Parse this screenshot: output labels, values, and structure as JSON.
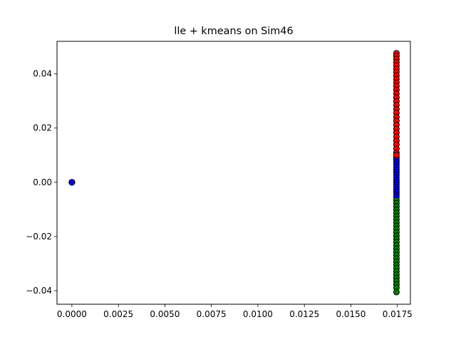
{
  "chart_data": {
    "type": "scatter",
    "title": "lle + kmeans on Sim46",
    "xlabel": "",
    "ylabel": "",
    "xlim": [
      -0.0008,
      0.0182
    ],
    "ylim": [
      -0.045,
      0.052
    ],
    "grid": false,
    "legend": "none",
    "x_ticks": [
      0.0,
      0.0025,
      0.005,
      0.0075,
      0.01,
      0.0125,
      0.015,
      0.0175
    ],
    "x_tick_labels": [
      "0.0000",
      "0.0025",
      "0.0050",
      "0.0075",
      "0.0100",
      "0.0125",
      "0.0150",
      "0.0175"
    ],
    "y_ticks": [
      -0.04,
      -0.02,
      0.0,
      0.02,
      0.04
    ],
    "y_tick_labels": [
      "−0.04",
      "−0.02",
      "0.00",
      "0.02",
      "0.04"
    ],
    "marker_edge_color": "#000000",
    "series": [
      {
        "color": "#0000ff",
        "points": [
          [
            0.0,
            0.0
          ],
          [
            0.0,
            0.0
          ],
          [
            0.0,
            0.0
          ],
          [
            0.0,
            0.0
          ],
          [
            0.0,
            0.0
          ],
          [
            0.01745,
            0.0092
          ],
          [
            0.01745,
            0.0083
          ],
          [
            0.01745,
            0.0074
          ],
          [
            0.01745,
            0.0065
          ],
          [
            0.01745,
            0.0055
          ],
          [
            0.01745,
            0.0046
          ],
          [
            0.01745,
            0.0037
          ],
          [
            0.01745,
            0.0028
          ],
          [
            0.01745,
            0.0018
          ],
          [
            0.01745,
            0.0009
          ],
          [
            0.01745,
            0.0
          ],
          [
            0.01745,
            -0.0009
          ],
          [
            0.01745,
            -0.0018
          ],
          [
            0.01745,
            -0.0027
          ],
          [
            0.01745,
            -0.0036
          ],
          [
            0.01745,
            -0.0045
          ],
          [
            0.01745,
            -0.0054
          ]
        ]
      },
      {
        "color": "#ff0000",
        "points": [
          [
            0.01745,
            0.0476
          ],
          [
            0.01745,
            0.0466
          ],
          [
            0.01745,
            0.0455
          ],
          [
            0.01745,
            0.0443
          ],
          [
            0.01745,
            0.0431
          ],
          [
            0.01745,
            0.0419
          ],
          [
            0.01745,
            0.0407
          ],
          [
            0.01745,
            0.0394
          ],
          [
            0.01745,
            0.0381
          ],
          [
            0.01745,
            0.0368
          ],
          [
            0.01745,
            0.0355
          ],
          [
            0.01745,
            0.0341
          ],
          [
            0.01745,
            0.0327
          ],
          [
            0.01745,
            0.0313
          ],
          [
            0.01745,
            0.0299
          ],
          [
            0.01745,
            0.0285
          ],
          [
            0.01745,
            0.027
          ],
          [
            0.01745,
            0.0256
          ],
          [
            0.01745,
            0.0241
          ],
          [
            0.01745,
            0.0227
          ],
          [
            0.01745,
            0.0212
          ],
          [
            0.01745,
            0.0197
          ],
          [
            0.01745,
            0.0183
          ],
          [
            0.01745,
            0.0168
          ],
          [
            0.01745,
            0.0153
          ],
          [
            0.01745,
            0.0139
          ],
          [
            0.01745,
            0.0124
          ],
          [
            0.01745,
            0.0109
          ],
          [
            0.01745,
            0.0101
          ]
        ]
      },
      {
        "color": "#008000",
        "points": [
          [
            0.01745,
            -0.0066
          ],
          [
            0.01745,
            -0.0077
          ],
          [
            0.01745,
            -0.0089
          ],
          [
            0.01745,
            -0.0101
          ],
          [
            0.01745,
            -0.0113
          ],
          [
            0.01745,
            -0.0125
          ],
          [
            0.01745,
            -0.0137
          ],
          [
            0.01745,
            -0.0149
          ],
          [
            0.01745,
            -0.0161
          ],
          [
            0.01745,
            -0.0173
          ],
          [
            0.01745,
            -0.0185
          ],
          [
            0.01745,
            -0.0197
          ],
          [
            0.01745,
            -0.0209
          ],
          [
            0.01745,
            -0.0221
          ],
          [
            0.01745,
            -0.0233
          ],
          [
            0.01745,
            -0.0245
          ],
          [
            0.01745,
            -0.0257
          ],
          [
            0.01745,
            -0.0269
          ],
          [
            0.01745,
            -0.0281
          ],
          [
            0.01745,
            -0.0293
          ],
          [
            0.01745,
            -0.0305
          ],
          [
            0.01745,
            -0.0317
          ],
          [
            0.01745,
            -0.0329
          ],
          [
            0.01745,
            -0.0341
          ],
          [
            0.01745,
            -0.0353
          ],
          [
            0.01745,
            -0.0365
          ],
          [
            0.01745,
            -0.0377
          ],
          [
            0.01745,
            -0.0389
          ],
          [
            0.01745,
            -0.0405
          ]
        ]
      }
    ]
  }
}
